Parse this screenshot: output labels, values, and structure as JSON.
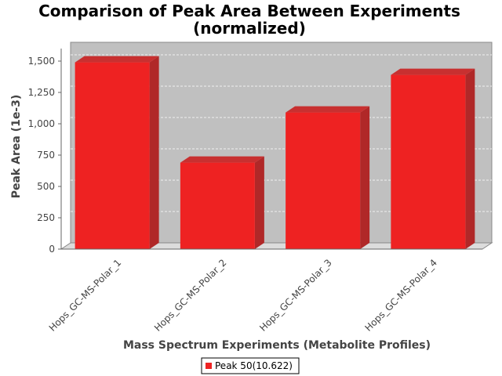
{
  "chart_data": {
    "type": "bar",
    "title_line1": "Comparison of Peak Area Between Experiments",
    "title_line2": "(normalized)",
    "xlabel": "Mass Spectrum Experiments (Metabolite Profiles)",
    "ylabel": "Peak Area (1e-3)",
    "categories": [
      "Hops_GC-MS-Polar_1",
      "Hops_GC-MS-Polar_2",
      "Hops_GC-MS-Polar_3",
      "Hops_GC-MS-Polar_4"
    ],
    "series": [
      {
        "name": "Peak 50(10.622)",
        "values": [
          1490,
          690,
          1090,
          1390
        ],
        "color": "#ee2222"
      }
    ],
    "ylim": [
      0,
      1600
    ],
    "yticks": [
      0,
      250,
      500,
      750,
      1000,
      1250,
      1500
    ],
    "ytick_labels": [
      "0",
      "250",
      "500",
      "750",
      "1,000",
      "1,250",
      "1,500"
    ],
    "grid": true,
    "legend_position": "bottom",
    "plot_background": "#c0c0c0"
  }
}
